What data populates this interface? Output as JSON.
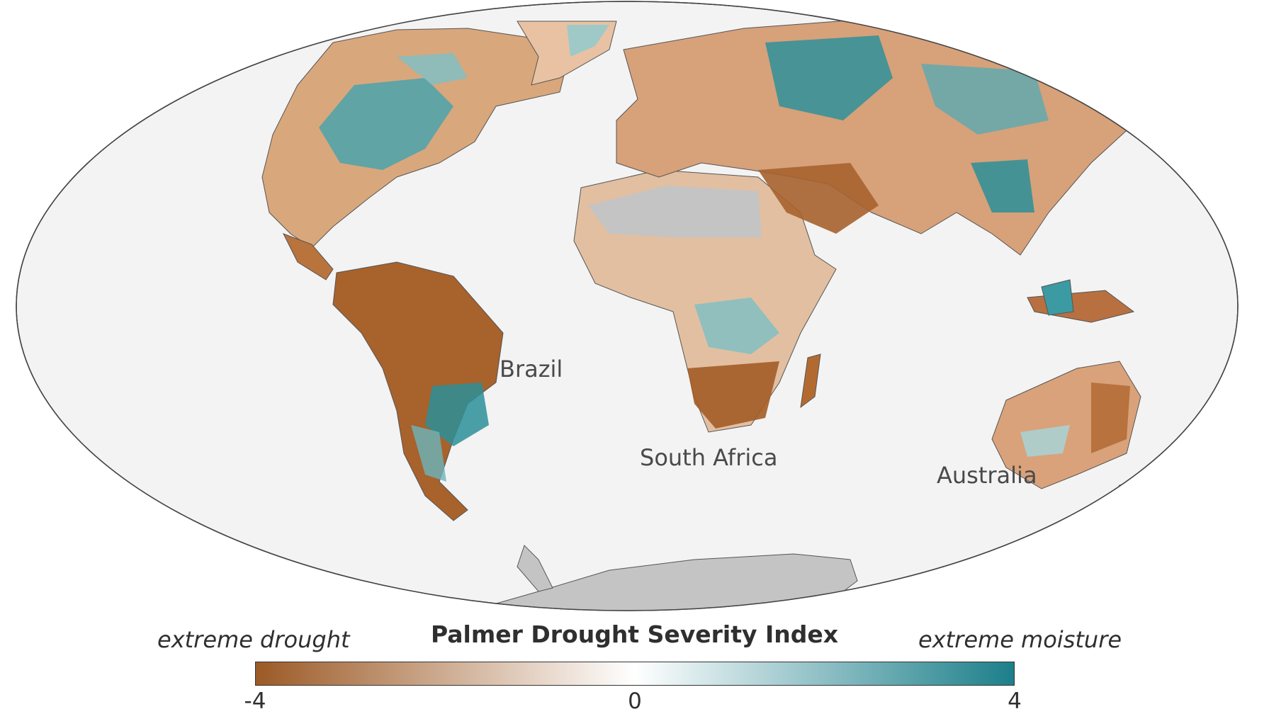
{
  "map": {
    "projection": "Mollweide",
    "ocean_color": "#f3f3f3",
    "no_data_color": "#c4c4c4",
    "region_labels": {
      "brazil": "Brazil",
      "south_africa": "South Africa",
      "australia": "Australia"
    }
  },
  "legend": {
    "title": "Palmer Drought Severity Index",
    "left_label": "extreme drought",
    "right_label": "extreme moisture",
    "min": -4,
    "max": 4,
    "ticks": [
      "-4",
      "0",
      "4"
    ],
    "colors": {
      "drought": "#9c5a26",
      "neutral": "#ffffff",
      "moisture": "#1c7f8a"
    }
  }
}
